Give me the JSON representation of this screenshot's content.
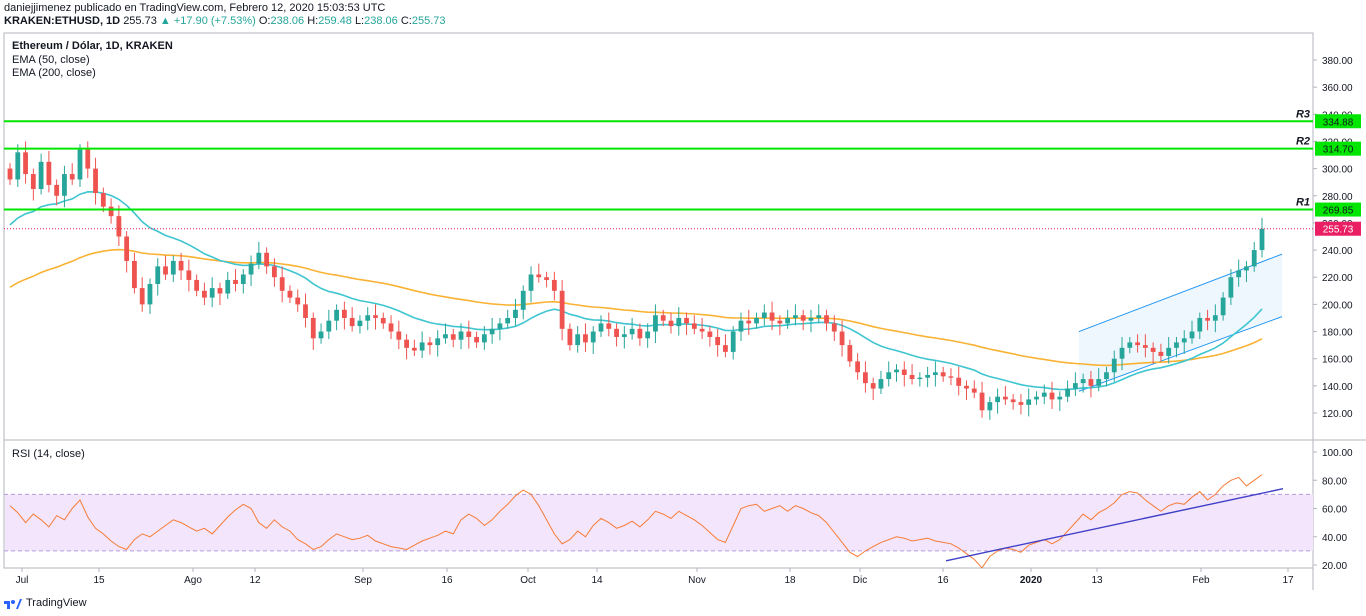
{
  "header": {
    "line1": "daniejjimenez publicado en TradingView.com, Febrero 12, 2020 15:03:53 UTC",
    "symbol": "KRAKEN:ETHUSD, 1D",
    "last": "255.73",
    "change": "+17.90 (+7.53%)",
    "o_label": "O:",
    "o": "238.06",
    "h_label": "H:",
    "h": "259.48",
    "l_label": "L:",
    "l": "238.06",
    "c_label": "C:",
    "c": "255.73"
  },
  "legend": {
    "title": "Ethereum / Dólar, 1D, KRAKEN",
    "ema50": "EMA (50, close)",
    "ema200": "EMA (200, close)",
    "rsi": "RSI (14, close)"
  },
  "footer": {
    "brand": "TradingView"
  },
  "colors": {
    "up": "#26a69a",
    "down": "#ef5350",
    "ema50": "#3ec5d0",
    "ema200": "#f9b233",
    "levels": "#00e600",
    "last": "#e91e63",
    "rsi": "#f57c37",
    "rsi_band": "#f3e5fc",
    "channel": "#2196f3",
    "rsi_trend": "#3f3fc8"
  },
  "chart_data": [
    {
      "type": "candlestick",
      "title": "Ethereum / Dólar, 1D, KRAKEN",
      "x_ticks": [
        "Jul",
        "15",
        "Ago",
        "12",
        "Sep",
        "16",
        "Oct",
        "14",
        "Nov",
        "18",
        "Dic",
        "16",
        "2020",
        "13",
        "Feb",
        "17"
      ],
      "y_ticks": [
        120,
        140,
        160,
        180,
        200,
        220,
        240,
        260,
        280,
        300,
        320,
        340,
        360,
        380
      ],
      "ylim": [
        105,
        395
      ],
      "last_price": "255.73",
      "levels": [
        {
          "name": "R1",
          "value": 269.85,
          "label": "269.85"
        },
        {
          "name": "R2",
          "value": 314.7,
          "label": "314.70"
        },
        {
          "name": "R3",
          "value": 334.88,
          "label": "334.88"
        }
      ],
      "closes": [
        292,
        312,
        296,
        285,
        305,
        288,
        280,
        296,
        292,
        314,
        300,
        282,
        272,
        265,
        250,
        232,
        212,
        200,
        215,
        228,
        222,
        232,
        225,
        218,
        210,
        205,
        212,
        208,
        218,
        215,
        222,
        230,
        238,
        228,
        220,
        210,
        205,
        200,
        190,
        175,
        180,
        188,
        196,
        190,
        184,
        188,
        192,
        190,
        186,
        180,
        174,
        168,
        166,
        172,
        170,
        175,
        178,
        174,
        180,
        176,
        172,
        178,
        182,
        186,
        190,
        196,
        210,
        222,
        220,
        218,
        210,
        182,
        170,
        178,
        172,
        180,
        186,
        182,
        176,
        178,
        182,
        175,
        180,
        192,
        188,
        184,
        190,
        186,
        182,
        180,
        176,
        170,
        165,
        180,
        188,
        186,
        190,
        194,
        188,
        186,
        190,
        192,
        188,
        190,
        192,
        186,
        180,
        170,
        158,
        150,
        142,
        138,
        145,
        150,
        152,
        148,
        145,
        146,
        148,
        150,
        147,
        146,
        140,
        138,
        135,
        122,
        128,
        132,
        130,
        128,
        126,
        130,
        132,
        135,
        130,
        132,
        138,
        142,
        145,
        140,
        145,
        150,
        160,
        168,
        172,
        170,
        168,
        165,
        162,
        168,
        172,
        175,
        180,
        190,
        188,
        192,
        205,
        220,
        225,
        228,
        240,
        255.73
      ],
      "ema50_label": "EMA (50, close)",
      "ema200_label": "EMA (200, close)",
      "ema50_end": 180,
      "ema200_end": 177
    },
    {
      "type": "line",
      "title": "RSI (14, close)",
      "y_ticks": [
        20,
        40,
        60,
        80,
        100
      ],
      "ylim": [
        14,
        107
      ],
      "band": [
        30,
        70
      ],
      "values": [
        62,
        57,
        50,
        56,
        52,
        47,
        55,
        52,
        60,
        66,
        54,
        46,
        42,
        37,
        33,
        31,
        38,
        42,
        40,
        44,
        48,
        52,
        50,
        47,
        44,
        46,
        42,
        48,
        54,
        59,
        63,
        60,
        50,
        46,
        52,
        47,
        44,
        38,
        35,
        31,
        33,
        38,
        42,
        40,
        38,
        39,
        41,
        37,
        35,
        33,
        32,
        31,
        34,
        37,
        39,
        41,
        44,
        42,
        52,
        56,
        53,
        48,
        52,
        58,
        63,
        69,
        73,
        70,
        62,
        52,
        42,
        35,
        38,
        44,
        40,
        48,
        53,
        50,
        46,
        48,
        51,
        47,
        52,
        58,
        56,
        53,
        58,
        55,
        52,
        48,
        43,
        38,
        36,
        48,
        60,
        62,
        63,
        58,
        60,
        62,
        58,
        62,
        60,
        57,
        55,
        50,
        43,
        36,
        29,
        26,
        30,
        33,
        36,
        38,
        40,
        39,
        37,
        38,
        39,
        37,
        36,
        35,
        32,
        28,
        24,
        18,
        26,
        30,
        32,
        31,
        29,
        34,
        36,
        38,
        35,
        38,
        44,
        50,
        56,
        52,
        57,
        60,
        64,
        70,
        72,
        71,
        66,
        62,
        58,
        62,
        64,
        63,
        68,
        72,
        66,
        70,
        76,
        80,
        82,
        76,
        80,
        84
      ]
    }
  ]
}
